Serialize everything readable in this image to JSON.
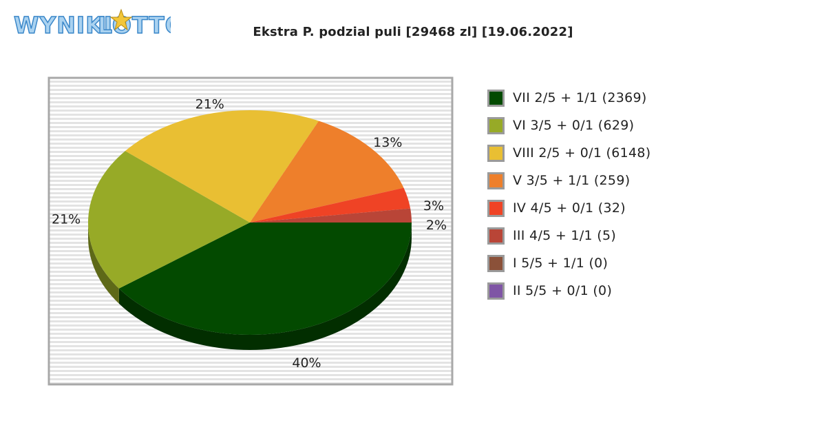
{
  "logo": {
    "text_a": "WYNIKI",
    "text_b": "LOTTO"
  },
  "chart_data": {
    "type": "pie",
    "title": "Ekstra P. podzial puli [29468 zl] [19.06.2022]",
    "legend_position": "right",
    "slices": [
      {
        "label": "VII 2/5 + 1/1 (2369)",
        "value": 40,
        "value_label": "40%",
        "color": "#034A00"
      },
      {
        "label": "VI 3/5 + 0/1 (629)",
        "value": 21,
        "value_label": "21%",
        "color": "#97AA27"
      },
      {
        "label": "VIII 2/5 + 0/1 (6148)",
        "value": 21,
        "value_label": "21%",
        "color": "#E9BF33"
      },
      {
        "label": "V 3/5 + 1/1 (259)",
        "value": 13,
        "value_label": "13%",
        "color": "#EE7F2B"
      },
      {
        "label": "IV 4/5 + 0/1 (32)",
        "value": 3,
        "value_label": "3%",
        "color": "#EF4325"
      },
      {
        "label": "III 4/5 + 1/1 (5)",
        "value": 2,
        "value_label": "2%",
        "color": "#B94537"
      },
      {
        "label": "I 5/5 + 1/1 (0)",
        "value": 0,
        "value_label": "",
        "color": "#8B5139"
      },
      {
        "label": "II 5/5 + 0/1 (0)",
        "value": 0,
        "value_label": "",
        "color": "#7F55A5"
      }
    ]
  }
}
